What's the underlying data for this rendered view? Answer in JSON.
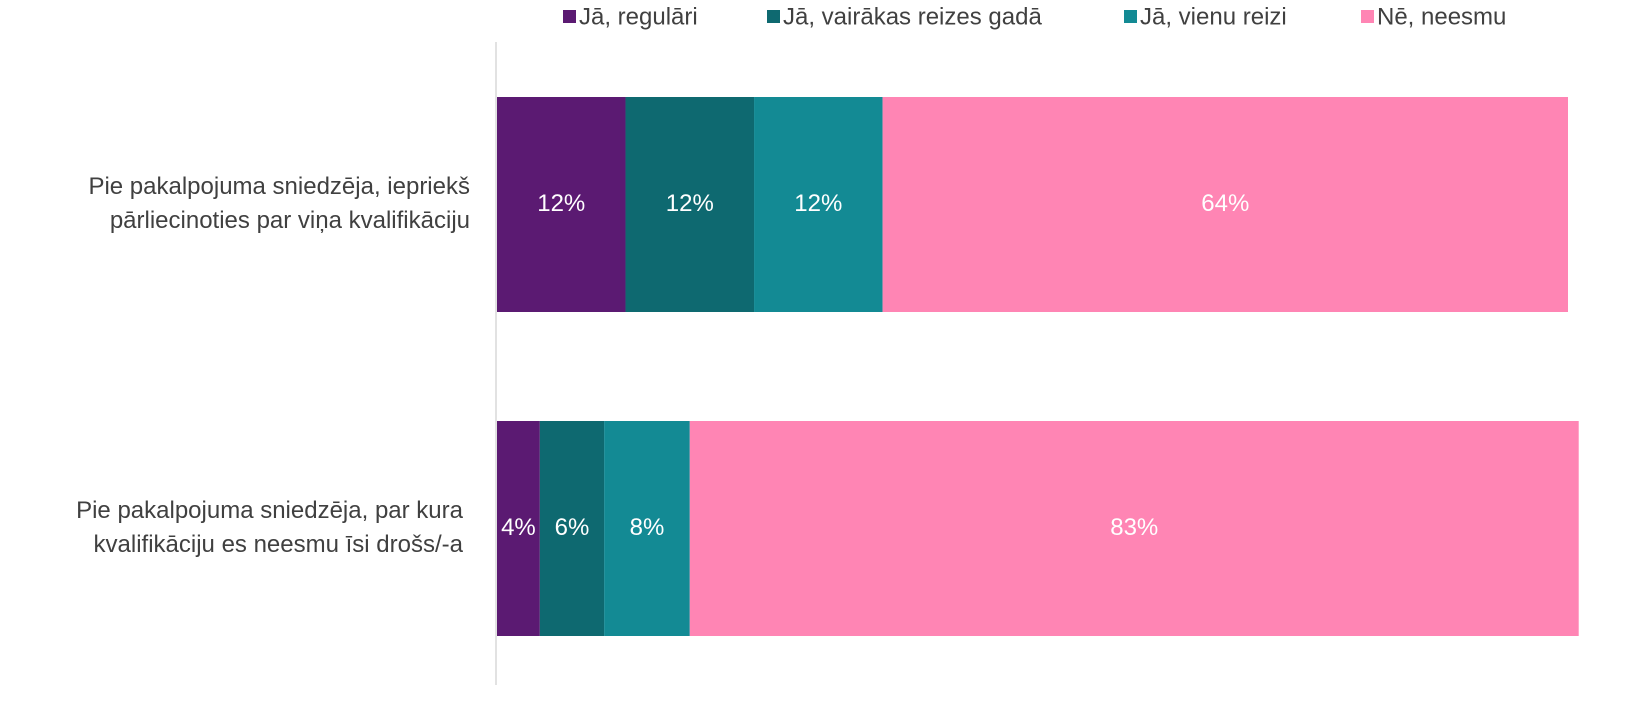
{
  "chart_data": {
    "type": "stacked-bar-horizontal",
    "categories": [
      [
        "Pie pakalpojuma sniedzēja, iepriekš",
        "pārliecinoties par viņa kvalifikāciju"
      ],
      [
        "Pie pakalpojuma sniedzēja, par kura",
        "kvalifikāciju es neesmu īsi drošs/-a"
      ]
    ],
    "series": [
      {
        "name": "Jā, regulāri",
        "color": "#5b1a72",
        "values": [
          12,
          4
        ],
        "value_labels": [
          "12%",
          "4%"
        ]
      },
      {
        "name": "Jā, vairākas reizes gadā",
        "color": "#0e6970",
        "values": [
          12,
          6
        ],
        "value_labels": [
          "12%",
          "6%"
        ]
      },
      {
        "name": "Jā, vienu reizi",
        "color": "#138a94",
        "values": [
          12,
          8
        ],
        "value_labels": [
          "12%",
          "8%"
        ]
      },
      {
        "name": "Nē, neesmu",
        "color": "#ff85b4",
        "values": [
          64,
          83
        ],
        "value_labels": [
          "64%",
          "83%"
        ]
      }
    ],
    "xlim": [
      0,
      100
    ],
    "legend": "top"
  }
}
